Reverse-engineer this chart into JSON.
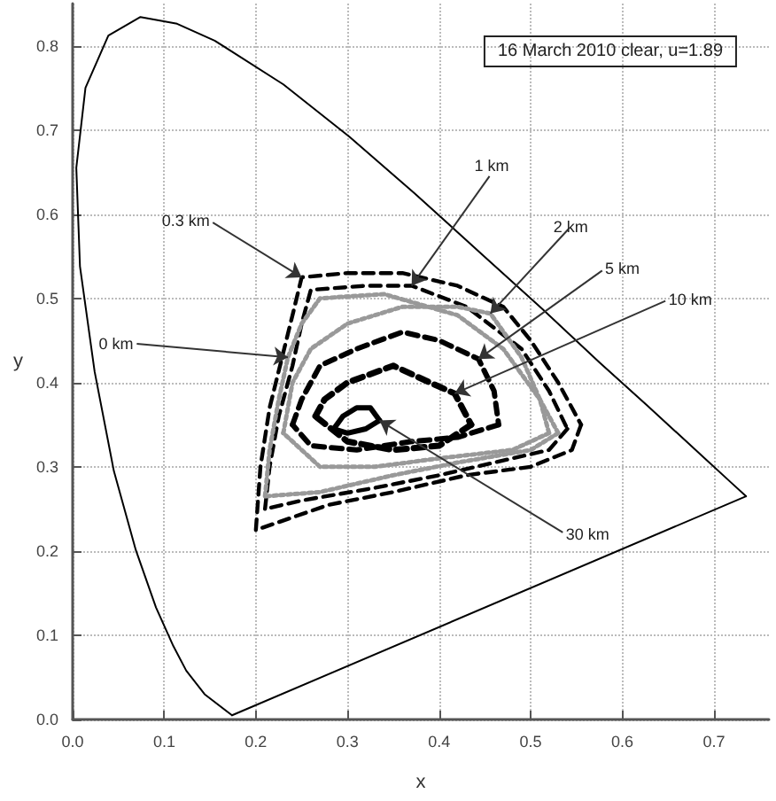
{
  "chart_data": {
    "type": "line",
    "xlabel": "x",
    "ylabel": "y",
    "xlim": [
      0,
      0.76
    ],
    "ylim": [
      0,
      0.85
    ],
    "xticks": [
      {
        "value": 0,
        "label": "0.0"
      },
      {
        "value": 0.1,
        "label": "0.1"
      },
      {
        "value": 0.2,
        "label": "0.2"
      },
      {
        "value": 0.3,
        "label": "0.3"
      },
      {
        "value": 0.4,
        "label": "0.4"
      },
      {
        "value": 0.5,
        "label": "0.5"
      },
      {
        "value": 0.6,
        "label": "0.6"
      },
      {
        "value": 0.7,
        "label": "0.7"
      }
    ],
    "yticks": [
      {
        "value": 0,
        "label": "0.0"
      },
      {
        "value": 0.1,
        "label": "0.1"
      },
      {
        "value": 0.2,
        "label": "0.2"
      },
      {
        "value": 0.3,
        "label": "0.3"
      },
      {
        "value": 0.4,
        "label": "0.4"
      },
      {
        "value": 0.5,
        "label": "0.5"
      },
      {
        "value": 0.6,
        "label": "0.6"
      },
      {
        "value": 0.7,
        "label": "0.7"
      },
      {
        "value": 0.8,
        "label": "0.8"
      }
    ],
    "grid": true,
    "marker": "none",
    "series": [
      {
        "color": "#000000",
        "line_style": "solid",
        "x": [
          0.174,
          0.144,
          0.124,
          0.11,
          0.091,
          0.069,
          0.045,
          0.024,
          0.008,
          0.004,
          0.014,
          0.039,
          0.074,
          0.114,
          0.155,
          0.23,
          0.302,
          0.373,
          0.444,
          0.513,
          0.575,
          0.627,
          0.692,
          0.719,
          0.735
        ],
        "values": [
          0.005,
          0.03,
          0.058,
          0.087,
          0.133,
          0.201,
          0.295,
          0.413,
          0.538,
          0.655,
          0.75,
          0.812,
          0.834,
          0.826,
          0.806,
          0.754,
          0.692,
          0.625,
          0.555,
          0.487,
          0.424,
          0.373,
          0.308,
          0.281,
          0.265
        ]
      },
      {
        "color": "#000000",
        "line_style": "solid",
        "x": [
          0.174,
          0.735
        ],
        "values": [
          0.005,
          0.265
        ]
      },
      {
        "color": "#000000",
        "line_style": "dashed",
        "x": [
          0.2,
          0.205,
          0.215,
          0.24,
          0.25,
          0.3,
          0.36,
          0.42,
          0.47,
          0.5,
          0.53,
          0.555
        ],
        "values": [
          0.225,
          0.3,
          0.37,
          0.48,
          0.525,
          0.53,
          0.53,
          0.515,
          0.49,
          0.45,
          0.4,
          0.35
        ]
      },
      {
        "color": "#000000",
        "line_style": "dashed",
        "x": [
          0.555,
          0.545,
          0.5,
          0.43,
          0.35,
          0.28,
          0.2
        ],
        "values": [
          0.35,
          0.32,
          0.3,
          0.29,
          0.27,
          0.255,
          0.225
        ]
      },
      {
        "color": "#000000",
        "line_style": "dashed",
        "x": [
          0.21,
          0.215,
          0.225,
          0.24,
          0.25,
          0.26,
          0.32,
          0.37,
          0.43,
          0.49,
          0.52,
          0.54
        ],
        "values": [
          0.25,
          0.3,
          0.36,
          0.42,
          0.47,
          0.51,
          0.515,
          0.515,
          0.49,
          0.44,
          0.39,
          0.345
        ]
      },
      {
        "color": "#000000",
        "line_style": "dashed",
        "x": [
          0.54,
          0.52,
          0.46,
          0.4,
          0.33,
          0.25,
          0.21
        ],
        "values": [
          0.345,
          0.32,
          0.305,
          0.29,
          0.275,
          0.26,
          0.25
        ]
      },
      {
        "color": "#999999",
        "line_style": "dotted",
        "x": [
          0.21,
          0.215,
          0.225,
          0.235,
          0.25,
          0.27,
          0.34,
          0.42,
          0.47,
          0.51,
          0.53
        ],
        "values": [
          0.265,
          0.32,
          0.38,
          0.43,
          0.47,
          0.5,
          0.505,
          0.48,
          0.44,
          0.38,
          0.34
        ]
      },
      {
        "color": "#999999",
        "line_style": "dotted",
        "x": [
          0.53,
          0.5,
          0.42,
          0.35,
          0.27,
          0.21
        ],
        "values": [
          0.34,
          0.32,
          0.305,
          0.29,
          0.27,
          0.265
        ]
      },
      {
        "color": "#999999",
        "line_style": "dotted",
        "x": [
          0.23,
          0.24,
          0.26,
          0.3,
          0.36,
          0.42,
          0.456,
          0.49,
          0.51,
          0.52
        ],
        "values": [
          0.34,
          0.4,
          0.44,
          0.47,
          0.49,
          0.49,
          0.482,
          0.43,
          0.38,
          0.34
        ]
      },
      {
        "color": "#999999",
        "line_style": "dotted",
        "x": [
          0.52,
          0.48,
          0.4,
          0.33,
          0.27,
          0.23
        ],
        "values": [
          0.34,
          0.32,
          0.31,
          0.3,
          0.3,
          0.34
        ]
      },
      {
        "color": "#000000",
        "line_style": "dashed",
        "x": [
          0.24,
          0.25,
          0.27,
          0.31,
          0.36,
          0.4,
          0.443,
          0.46,
          0.465
        ],
        "values": [
          0.35,
          0.38,
          0.42,
          0.44,
          0.46,
          0.45,
          0.428,
          0.39,
          0.35
        ]
      },
      {
        "color": "#000000",
        "line_style": "dashed",
        "x": [
          0.465,
          0.42,
          0.37,
          0.31,
          0.26,
          0.24
        ],
        "values": [
          0.35,
          0.335,
          0.33,
          0.32,
          0.325,
          0.35
        ]
      },
      {
        "color": "#000000",
        "line_style": "dashed",
        "x": [
          0.265,
          0.275,
          0.3,
          0.35,
          0.39,
          0.417,
          0.435
        ],
        "values": [
          0.36,
          0.38,
          0.4,
          0.42,
          0.4,
          0.387,
          0.35
        ]
      },
      {
        "color": "#000000",
        "line_style": "dashed",
        "x": [
          0.435,
          0.4,
          0.35,
          0.3,
          0.265
        ],
        "values": [
          0.35,
          0.325,
          0.32,
          0.33,
          0.36
        ]
      },
      {
        "color": "#000000",
        "line_style": "solid",
        "x": [
          0.285,
          0.295,
          0.31,
          0.325,
          0.335
        ],
        "values": [
          0.345,
          0.36,
          0.37,
          0.37,
          0.355
        ]
      },
      {
        "color": "#000000",
        "line_style": "solid",
        "x": [
          0.335,
          0.32,
          0.3,
          0.285
        ],
        "values": [
          0.355,
          0.345,
          0.34,
          0.345
        ]
      }
    ],
    "annotations": [
      "16 March 2010 clear, u=1.89",
      {
        "text": "0 km",
        "x": 0.235,
        "y": 0.43
      },
      {
        "text": "0.3 km",
        "x": 0.25,
        "y": 0.525
      },
      {
        "text": "1 km",
        "x": 0.37,
        "y": 0.515
      },
      {
        "text": "2 km",
        "x": 0.456,
        "y": 0.482
      },
      {
        "text": "5 km",
        "x": 0.443,
        "y": 0.428
      },
      {
        "text": "10 km",
        "x": 0.417,
        "y": 0.387
      },
      {
        "text": "30 km",
        "x": 0.335,
        "y": 0.355
      }
    ]
  }
}
